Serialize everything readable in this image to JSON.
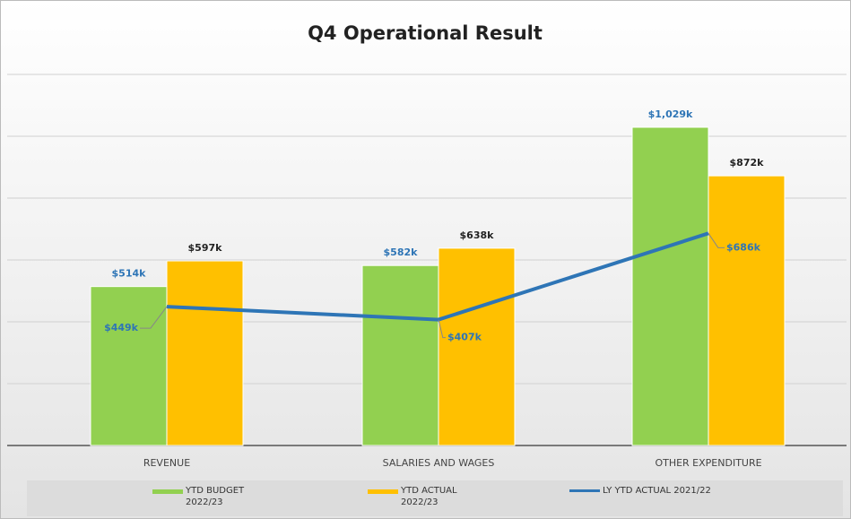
{
  "chart_data": {
    "type": "bar",
    "title": "Q4 Operational Result",
    "categories": [
      "REVENUE",
      "SALARIES AND WAGES",
      "OTHER EXPENDITURE"
    ],
    "series": [
      {
        "name": "YTD BUDGET 2022/23",
        "type": "bar",
        "color": "#92d050",
        "values": [
          514,
          582,
          1029
        ],
        "value_labels": [
          "$514k",
          "$582k",
          "$1,029k"
        ]
      },
      {
        "name": "YTD ACTUAL 2022/23",
        "type": "bar",
        "color": "#ffc000",
        "values": [
          597,
          638,
          872
        ],
        "value_labels": [
          "$597k",
          "$638k",
          "$872k"
        ]
      },
      {
        "name": "LY YTD ACTUAL 2021/22",
        "type": "line",
        "color": "#2e75b6",
        "values": [
          449,
          407,
          686
        ],
        "value_labels": [
          "$449k",
          "$407k",
          "$686k"
        ]
      }
    ],
    "ylim": [
      0,
      1200
    ],
    "yticks": [
      0,
      200,
      400,
      600,
      800,
      1000,
      1200
    ],
    "grid": true
  }
}
